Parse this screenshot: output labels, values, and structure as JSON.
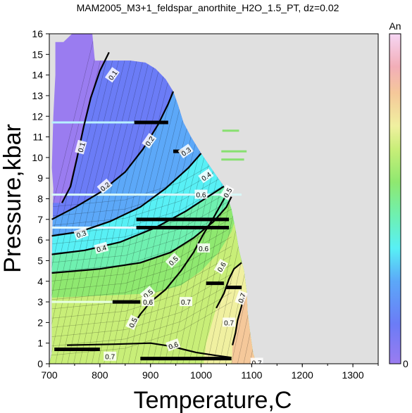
{
  "chart_data": {
    "type": "heatmap",
    "title": "MAM2005_M3+1_feldspar_anorthite_H2O_1.5_PT, dz=0.02",
    "xlabel": "Temperature,C",
    "ylabel": "Pressure,kbar",
    "xlim": [
      700,
      1350
    ],
    "ylim": [
      0,
      16
    ],
    "x_ticks": [
      700,
      800,
      900,
      1000,
      1100,
      1200,
      1300
    ],
    "y_ticks": [
      0,
      1,
      2,
      3,
      4,
      5,
      6,
      7,
      8,
      9,
      10,
      11,
      12,
      13,
      14,
      15,
      16
    ],
    "grid": false,
    "background_color": "#e0e0e0",
    "colorbar": {
      "label": "An",
      "min_label": "0",
      "range": [
        0,
        1
      ],
      "stops": [
        {
          "v": 0.0,
          "color": "#9a7cf0"
        },
        {
          "v": 0.12,
          "color": "#6b7cf6"
        },
        {
          "v": 0.25,
          "color": "#5ca8f8"
        },
        {
          "v": 0.35,
          "color": "#58f0f5"
        },
        {
          "v": 0.45,
          "color": "#6ff0b0"
        },
        {
          "v": 0.55,
          "color": "#8fe870"
        },
        {
          "v": 0.65,
          "color": "#c8ee78"
        },
        {
          "v": 0.72,
          "color": "#f0f0a0"
        },
        {
          "v": 0.82,
          "color": "#f5c89a"
        },
        {
          "v": 0.9,
          "color": "#f2aeb8"
        },
        {
          "v": 1.0,
          "color": "#f6d6f4"
        }
      ]
    },
    "field_boundary": {
      "left_edge": [
        [
          705,
          0.5
        ],
        [
          705,
          4.5
        ],
        [
          708,
          8.5
        ],
        [
          705,
          9.5
        ],
        [
          708,
          12
        ],
        [
          712,
          14
        ],
        [
          712,
          15.6
        ],
        [
          728,
          15.6
        ],
        [
          745,
          16
        ],
        [
          785,
          16
        ],
        [
          790,
          14.7
        ]
      ],
      "top_edge": [
        [
          790,
          14.7
        ],
        [
          860,
          14.7
        ],
        [
          890,
          14.6
        ],
        [
          910,
          14.3
        ],
        [
          930,
          13.8
        ],
        [
          945,
          13.2
        ],
        [
          955,
          12.5
        ],
        [
          965,
          11.7
        ],
        [
          980,
          11.0
        ],
        [
          1000,
          10.2
        ],
        [
          1025,
          9.3
        ],
        [
          1045,
          8.6
        ],
        [
          1060,
          7.5
        ],
        [
          1068,
          6.5
        ],
        [
          1075,
          5.5
        ],
        [
          1085,
          4.5
        ],
        [
          1090,
          3.5
        ],
        [
          1092,
          2.5
        ],
        [
          1097,
          1.5
        ],
        [
          1103,
          0.5
        ],
        [
          1110,
          0
        ]
      ]
    },
    "contours": [
      {
        "label": "0.1",
        "points": [
          [
            725,
            7.8
          ],
          [
            742,
            8.6
          ],
          [
            755,
            10.0
          ],
          [
            768,
            11.5
          ],
          [
            782,
            12.9
          ],
          [
            800,
            14.2
          ],
          [
            818,
            15.1
          ]
        ]
      },
      {
        "label": "0.2",
        "points": [
          [
            705,
            7.0
          ],
          [
            752,
            7.6
          ],
          [
            800,
            8.3
          ],
          [
            850,
            9.3
          ],
          [
            885,
            10.4
          ],
          [
            915,
            11.6
          ],
          [
            935,
            12.6
          ],
          [
            945,
            13.2
          ]
        ]
      },
      {
        "label": "0.3",
        "points": [
          [
            705,
            6.2
          ],
          [
            760,
            6.4
          ],
          [
            820,
            6.9
          ],
          [
            880,
            7.6
          ],
          [
            930,
            8.5
          ],
          [
            975,
            9.5
          ],
          [
            1000,
            10.2
          ]
        ]
      },
      {
        "label": "0.4",
        "points": [
          [
            705,
            5.3
          ],
          [
            770,
            5.5
          ],
          [
            840,
            5.9
          ],
          [
            910,
            6.6
          ],
          [
            970,
            7.4
          ],
          [
            1020,
            8.2
          ],
          [
            1045,
            8.6
          ]
        ]
      },
      {
        "label": "0.5",
        "points": [
          [
            705,
            4.4
          ],
          [
            800,
            4.6
          ],
          [
            880,
            4.9
          ],
          [
            940,
            5.4
          ],
          [
            985,
            6.1
          ],
          [
            1025,
            6.9
          ],
          [
            1050,
            7.6
          ],
          [
            1060,
            8.1
          ]
        ]
      },
      {
        "label": "0.5",
        "points": [
          [
            862,
            1.7
          ],
          [
            880,
            2.4
          ],
          [
            900,
            3.0
          ],
          [
            930,
            3.6
          ],
          [
            960,
            4.5
          ],
          [
            985,
            5.4
          ],
          [
            1005,
            6.3
          ],
          [
            1025,
            7.1
          ],
          [
            1050,
            8.2
          ]
        ]
      },
      {
        "label": "0.6",
        "points": [
          [
            735,
            0.9
          ],
          [
            830,
            0.95
          ],
          [
            900,
            1.0
          ],
          [
            940,
            0.85
          ],
          [
            990,
            0.55
          ],
          [
            1030,
            0.4
          ],
          [
            1060,
            0.3
          ]
        ]
      },
      {
        "label": "0.7",
        "points": [
          [
            1030,
            2.7
          ],
          [
            1045,
            3.4
          ],
          [
            1055,
            4.1
          ],
          [
            1065,
            4.6
          ],
          [
            1080,
            4.9
          ]
        ]
      },
      {
        "label": "0.7",
        "points": [
          [
            1062,
            0.9
          ],
          [
            1068,
            1.5
          ],
          [
            1072,
            2.1
          ],
          [
            1080,
            2.8
          ],
          [
            1085,
            3.4
          ]
        ]
      }
    ],
    "contour_labels": [
      {
        "text": "0.1",
        "x": 825,
        "y": 14.0,
        "angle": -55
      },
      {
        "text": "0.1",
        "x": 763,
        "y": 10.5,
        "angle": -75
      },
      {
        "text": "0.2",
        "x": 898,
        "y": 10.8,
        "angle": -55
      },
      {
        "text": "0.2",
        "x": 810,
        "y": 8.6,
        "angle": -40
      },
      {
        "text": "0.3",
        "x": 763,
        "y": 6.3,
        "angle": -20
      },
      {
        "text": "0.3",
        "x": 970,
        "y": 10.3,
        "angle": -35
      },
      {
        "text": "0.4",
        "x": 803,
        "y": 5.6,
        "angle": -15
      },
      {
        "text": "0.4",
        "x": 1010,
        "y": 9.1,
        "angle": -35
      },
      {
        "text": "0.5",
        "x": 945,
        "y": 5.0,
        "angle": -45
      },
      {
        "text": "0.5",
        "x": 1052,
        "y": 8.3,
        "angle": -60
      },
      {
        "text": "0.5",
        "x": 895,
        "y": 3.4,
        "angle": -40
      },
      {
        "text": "0.5",
        "x": 865,
        "y": 2.0,
        "angle": -65
      },
      {
        "text": "0.6",
        "x": 1000,
        "y": 8.2,
        "angle": 0
      },
      {
        "text": "0.6",
        "x": 1005,
        "y": 5.6,
        "angle": 0
      },
      {
        "text": "0.6",
        "x": 1040,
        "y": 4.7,
        "angle": -60
      },
      {
        "text": "0.6",
        "x": 945,
        "y": 0.9,
        "angle": -20
      },
      {
        "text": "0.7",
        "x": 970,
        "y": 3.0,
        "angle": 0
      },
      {
        "text": "0.7",
        "x": 1055,
        "y": 2.0,
        "angle": 0
      },
      {
        "text": "0.7",
        "x": 1080,
        "y": 3.2,
        "angle": -70
      },
      {
        "text": "0.7",
        "x": 1110,
        "y": 0.05,
        "angle": 0
      },
      {
        "text": "0.7",
        "x": 820,
        "y": 0.35,
        "angle": 0
      },
      {
        "text": "0.6",
        "x": 895,
        "y": 3.0,
        "angle": 0
      }
    ],
    "artifact_bars": [
      {
        "x1": 868,
        "x2": 935,
        "y": 11.7
      },
      {
        "x1": 945,
        "x2": 965,
        "y": 10.3
      },
      {
        "x1": 872,
        "x2": 1055,
        "y": 7.0
      },
      {
        "x1": 872,
        "x2": 1055,
        "y": 6.6
      },
      {
        "x1": 825,
        "x2": 880,
        "y": 3.0
      },
      {
        "x1": 1010,
        "x2": 1045,
        "y": 3.9
      },
      {
        "x1": 1050,
        "x2": 1080,
        "y": 3.7
      },
      {
        "x1": 710,
        "x2": 800,
        "y": 0.7
      },
      {
        "x1": 880,
        "x2": 1060,
        "y": 0.25
      }
    ],
    "light_bars": [
      {
        "x1": 705,
        "x2": 868,
        "y": 11.7,
        "color": "#b8f0ff"
      },
      {
        "x1": 705,
        "x2": 1080,
        "y": 8.2,
        "color": "#d8f8f8"
      },
      {
        "x1": 705,
        "x2": 900,
        "y": 6.6,
        "color": "#dff8ff"
      },
      {
        "x1": 705,
        "x2": 880,
        "y": 3.0,
        "color": "#e6ffe0"
      },
      {
        "x1": 1042,
        "x2": 1075,
        "y": 11.3,
        "color": "#88e070"
      },
      {
        "x1": 1040,
        "x2": 1090,
        "y": 10.3,
        "color": "#88e070"
      },
      {
        "x1": 1040,
        "x2": 1085,
        "y": 9.9,
        "color": "#88e070"
      }
    ]
  }
}
